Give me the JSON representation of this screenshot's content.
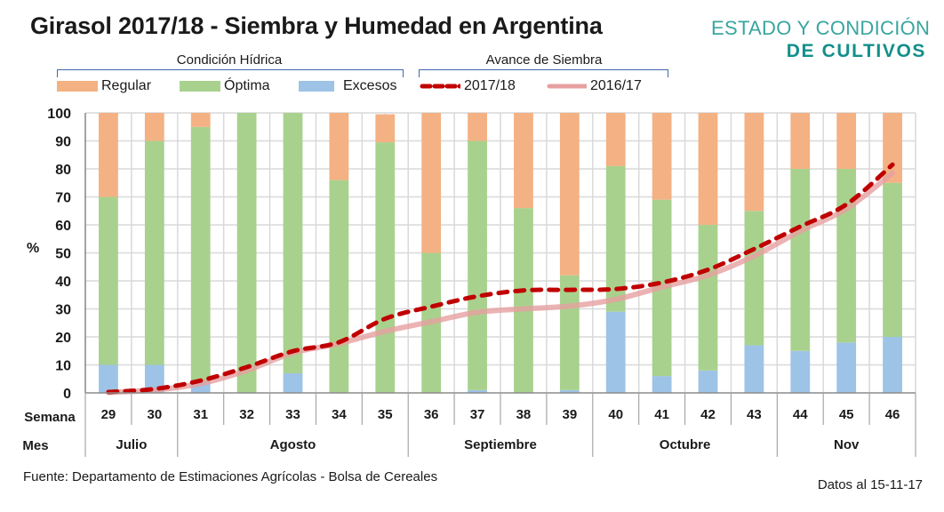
{
  "header": {
    "title": "Girasol 2017/18 - Siembra y Humedad en Argentina",
    "logo_line1": "ESTADO Y CONDICIÓN",
    "logo_line2": "DE CULTIVOS"
  },
  "legend": {
    "group_hidrica": "Condición Hídrica",
    "group_siembra": "Avance de Siembra",
    "items": [
      {
        "label": "Regular",
        "color": "#f4b183",
        "kind": "bar"
      },
      {
        "label": "Óptima",
        "color": "#a9d18e",
        "kind": "bar"
      },
      {
        "label": "Excesos",
        "color": "#9dc3e6",
        "kind": "bar"
      },
      {
        "label": "2017/18",
        "color": "#c00000",
        "kind": "dashed-line"
      },
      {
        "label": "2016/17",
        "color": "#e6a0a0",
        "kind": "solid-line"
      }
    ]
  },
  "footer": {
    "source": "Fuente: Departamento de Estimaciones Agrícolas - Bolsa de Cereales",
    "date": "Datos al 15-11-17"
  },
  "chart_data": {
    "type": "bar",
    "stacked": true,
    "title": "Girasol 2017/18 - Siembra y Humedad en Argentina",
    "ylabel": "%",
    "xlabel_rows": [
      "Semana",
      "Mes"
    ],
    "ylim": [
      0,
      100
    ],
    "yticks": [
      0,
      10,
      20,
      30,
      40,
      50,
      60,
      70,
      80,
      90,
      100
    ],
    "grid": true,
    "legend_position": "top",
    "categories": [
      "29",
      "30",
      "31",
      "32",
      "33",
      "34",
      "35",
      "36",
      "37",
      "38",
      "39",
      "40",
      "41",
      "42",
      "43",
      "44",
      "45",
      "46"
    ],
    "months": [
      {
        "label": "Julio",
        "span": 2
      },
      {
        "label": "Agosto",
        "span": 5
      },
      {
        "label": "Septiembre",
        "span": 4
      },
      {
        "label": "Octubre",
        "span": 4
      },
      {
        "label": "Nov",
        "span": 3
      }
    ],
    "series": [
      {
        "name": "Excesos",
        "type": "bar",
        "color": "#9dc3e6",
        "values": [
          10,
          10,
          4,
          0,
          7,
          0,
          0,
          0,
          1,
          0,
          1,
          29,
          6,
          8,
          17,
          15,
          18,
          20
        ]
      },
      {
        "name": "Óptima",
        "type": "bar",
        "color": "#a9d18e",
        "values": [
          60,
          80,
          91,
          100,
          93,
          76,
          89.5,
          50,
          89,
          66,
          41,
          52,
          63,
          52,
          48,
          65,
          62,
          55
        ]
      },
      {
        "name": "Regular",
        "type": "bar",
        "color": "#f4b183",
        "values": [
          30,
          10,
          5,
          0,
          0,
          24,
          10,
          50,
          10,
          34,
          58,
          19,
          31,
          40,
          35,
          20,
          20,
          25
        ]
      },
      {
        "name": "2017/18",
        "type": "line",
        "style": "dashed",
        "color": "#c00000",
        "values": [
          0.3,
          1.4,
          4.4,
          9.2,
          14.9,
          18.1,
          26.5,
          30.8,
          34.5,
          36.6,
          36.8,
          37.1,
          39.4,
          44,
          51.4,
          59.4,
          67.3,
          81.5
        ]
      },
      {
        "name": "2016/17",
        "type": "line",
        "style": "solid",
        "color": "#e6a0a0",
        "values": [
          0.2,
          1,
          3.3,
          8,
          14.3,
          17.6,
          22,
          25.4,
          28.8,
          30,
          31,
          33.4,
          37.8,
          42,
          48.9,
          57.8,
          65.7,
          78.5
        ]
      }
    ]
  }
}
